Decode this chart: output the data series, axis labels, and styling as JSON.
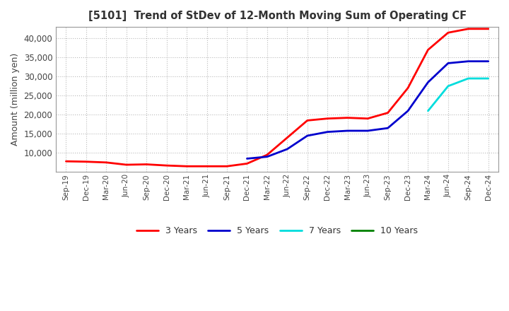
{
  "title": "[5101]  Trend of StDev of 12-Month Moving Sum of Operating CF",
  "ylabel": "Amount (million yen)",
  "background_color": "#ffffff",
  "grid_color": "#bbbbbb",
  "legend": [
    "3 Years",
    "5 Years",
    "7 Years",
    "10 Years"
  ],
  "line_colors": [
    "#ff0000",
    "#0000cd",
    "#00dddd",
    "#008000"
  ],
  "x_labels": [
    "Sep-19",
    "Dec-19",
    "Mar-20",
    "Jun-20",
    "Sep-20",
    "Dec-20",
    "Mar-21",
    "Jun-21",
    "Sep-21",
    "Dec-21",
    "Mar-22",
    "Jun-22",
    "Sep-22",
    "Dec-22",
    "Mar-23",
    "Jun-23",
    "Sep-23",
    "Dec-23",
    "Mar-24",
    "Jun-24",
    "Sep-24",
    "Dec-24"
  ],
  "ylim": [
    5000,
    43000
  ],
  "yticks": [
    10000,
    15000,
    20000,
    25000,
    30000,
    35000,
    40000
  ],
  "series": {
    "3y": [
      7800,
      7700,
      7500,
      6900,
      7000,
      6700,
      6500,
      6500,
      6500,
      7200,
      9500,
      14000,
      18500,
      19000,
      19200,
      19000,
      20500,
      27000,
      37000,
      41500,
      42500,
      42500
    ],
    "5y": [
      null,
      null,
      null,
      null,
      null,
      null,
      null,
      null,
      null,
      8500,
      9000,
      11000,
      14500,
      15500,
      15800,
      15800,
      16500,
      21000,
      28500,
      33500,
      34000,
      34000
    ],
    "7y": [
      null,
      null,
      null,
      null,
      null,
      null,
      null,
      null,
      null,
      null,
      null,
      null,
      null,
      null,
      null,
      null,
      null,
      null,
      21000,
      27500,
      29500,
      29500
    ],
    "10y": [
      null,
      null,
      null,
      null,
      null,
      null,
      null,
      null,
      null,
      null,
      null,
      null,
      null,
      null,
      null,
      null,
      null,
      null,
      null,
      null,
      null,
      null
    ]
  }
}
